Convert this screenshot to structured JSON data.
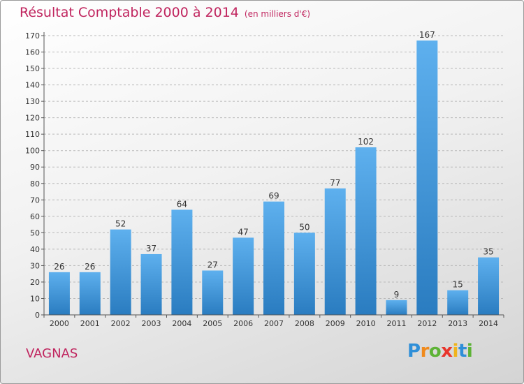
{
  "title": "Résultat Comptable 2000 à 2014",
  "unit": "(en milliers d'€)",
  "city": "VAGNAS",
  "brand": {
    "letters": [
      "P",
      "r",
      "o",
      "x",
      "i",
      "t",
      "i"
    ],
    "colors": [
      "#2f8fd8",
      "#f08a1c",
      "#5db336",
      "#e8352c",
      "#f0b41c",
      "#2f8fd8",
      "#5db336"
    ]
  },
  "colors": {
    "title": "#c0245e",
    "bar_light": "#5eb0ee",
    "bar_dark": "#2a7cc0"
  },
  "chart_data": {
    "type": "bar",
    "categories": [
      "2000",
      "2001",
      "2002",
      "2003",
      "2004",
      "2005",
      "2006",
      "2007",
      "2008",
      "2009",
      "2010",
      "2011",
      "2012",
      "2013",
      "2014"
    ],
    "values": [
      26,
      26,
      52,
      37,
      64,
      27,
      47,
      69,
      50,
      77,
      102,
      9,
      167,
      15,
      35
    ],
    "yticks": [
      0,
      10,
      20,
      30,
      40,
      50,
      60,
      70,
      80,
      90,
      100,
      110,
      120,
      130,
      140,
      150,
      160,
      170
    ],
    "ylim": [
      0,
      170
    ],
    "grid": true
  }
}
